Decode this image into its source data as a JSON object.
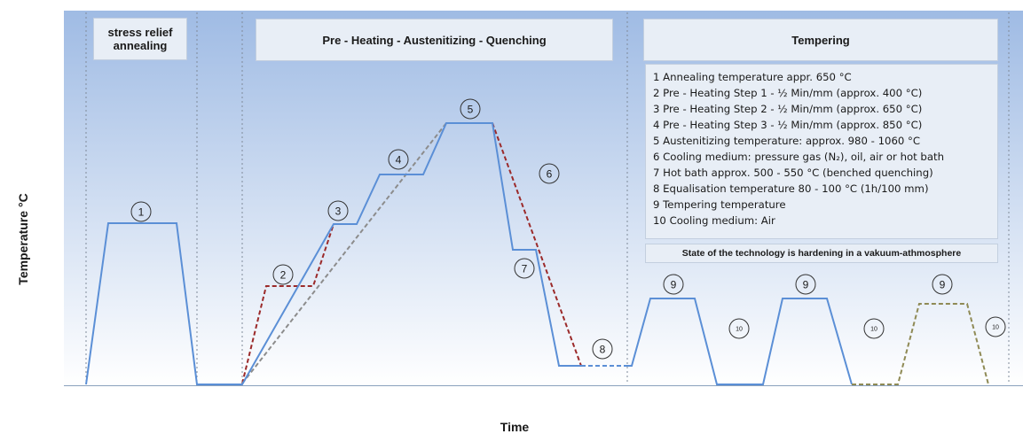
{
  "axes": {
    "y_label": "Temperature °C",
    "x_label": "Time"
  },
  "headers": {
    "stress": "stress relief\nannealing",
    "preheat": "Pre - Heating  - Austenitizing  - Quenching",
    "tempering": "Tempering"
  },
  "legend": [
    "1 Annealing temperature appr. 650 °C",
    "2 Pre - Heating Step 1 - ½ Min/mm (approx. 400 °C)",
    "3 Pre - Heating Step 2 - ½ Min/mm (approx. 650 °C)",
    "4 Pre - Heating Step 3 - ½ Min/mm (approx. 850 °C)",
    "5 Austenitizing temperature: approx. 980 - 1060  °C",
    "6 Cooling medium: pressure gas (N₂), oil, air or hot bath",
    "7 Hot bath approx. 500 - 550 °C (benched quenching)",
    "8 Equalisation temperature  80 - 100 °C (1h/100 mm)",
    "9 Tempering temperature",
    "10 Cooling medium: Air"
  ],
  "note": "State of the technology is hardening in a vakuum-athmosphere",
  "markers": [
    "1",
    "2",
    "3",
    "4",
    "5",
    "6",
    "7",
    "8",
    "9",
    "9",
    "9",
    "10",
    "10",
    "10"
  ],
  "colors": {
    "main": "#5b8fd6",
    "dash_red": "#9b2a2a",
    "dash_grey": "#8c8c8c",
    "dash_olive": "#8f8a55",
    "bg_top": "#9fbbe4",
    "bg_bottom": "#ffffff"
  }
}
